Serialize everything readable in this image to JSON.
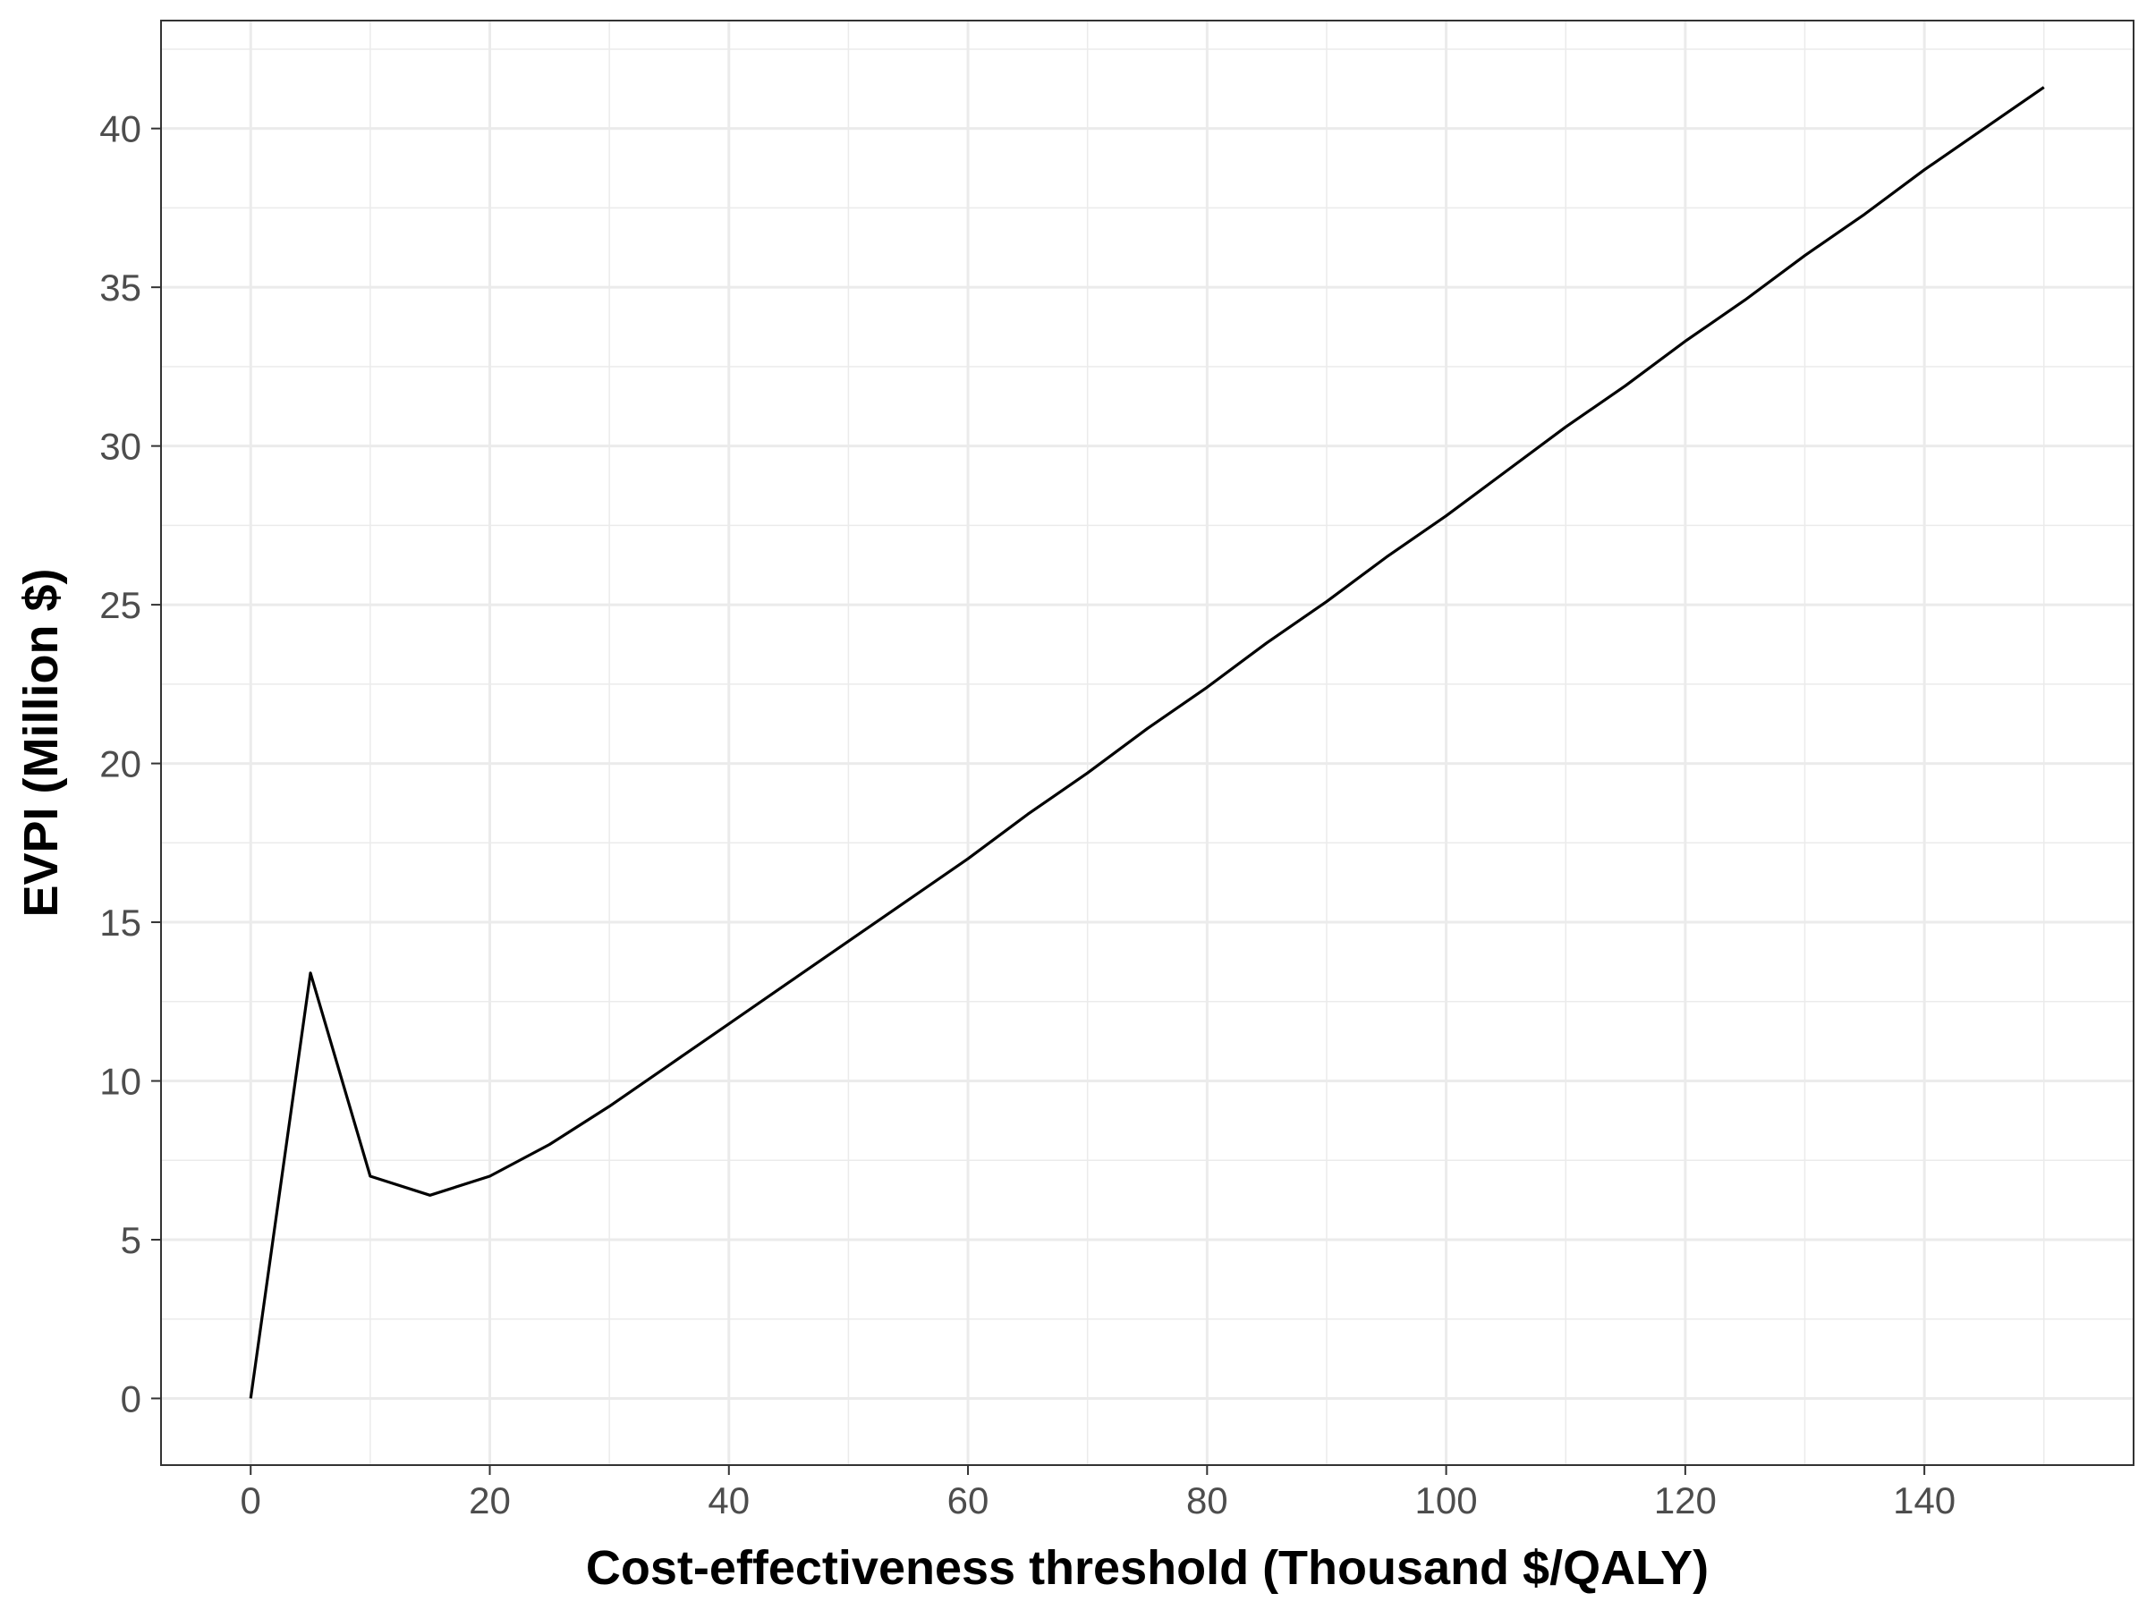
{
  "chart_data": {
    "type": "line",
    "title": "",
    "xlabel": "Cost-effectiveness threshold (Thousand $/QALY)",
    "ylabel": "EVPI (Million $)",
    "xlim": [
      -7.5,
      157.5
    ],
    "ylim": [
      -2.1,
      43.4
    ],
    "x_ticks": [
      0,
      20,
      40,
      60,
      80,
      100,
      120,
      140
    ],
    "x_tick_labels": [
      "0",
      "20",
      "40",
      "60",
      "80",
      "100",
      "120",
      "140"
    ],
    "y_ticks": [
      0,
      5,
      10,
      15,
      20,
      25,
      30,
      35,
      40
    ],
    "y_tick_labels": [
      "0",
      "5",
      "10",
      "15",
      "20",
      "25",
      "30",
      "35",
      "40"
    ],
    "grid": true,
    "legend": "none",
    "line_color": "#000000",
    "series": [
      {
        "x": [
          0,
          5,
          10,
          15,
          20,
          25,
          30,
          35,
          40,
          45,
          50,
          55,
          60,
          65,
          70,
          75,
          80,
          85,
          90,
          95,
          100,
          105,
          110,
          115,
          120,
          125,
          130,
          135,
          140,
          145,
          150
        ],
        "values": [
          0.0,
          13.4,
          7.0,
          6.4,
          7.0,
          8.0,
          9.2,
          10.5,
          11.8,
          13.1,
          14.4,
          15.7,
          17.0,
          18.4,
          19.7,
          21.1,
          22.4,
          23.8,
          25.1,
          26.5,
          27.8,
          29.2,
          30.6,
          31.9,
          33.3,
          34.6,
          36.0,
          37.3,
          38.7,
          40.0,
          41.3
        ]
      }
    ]
  }
}
